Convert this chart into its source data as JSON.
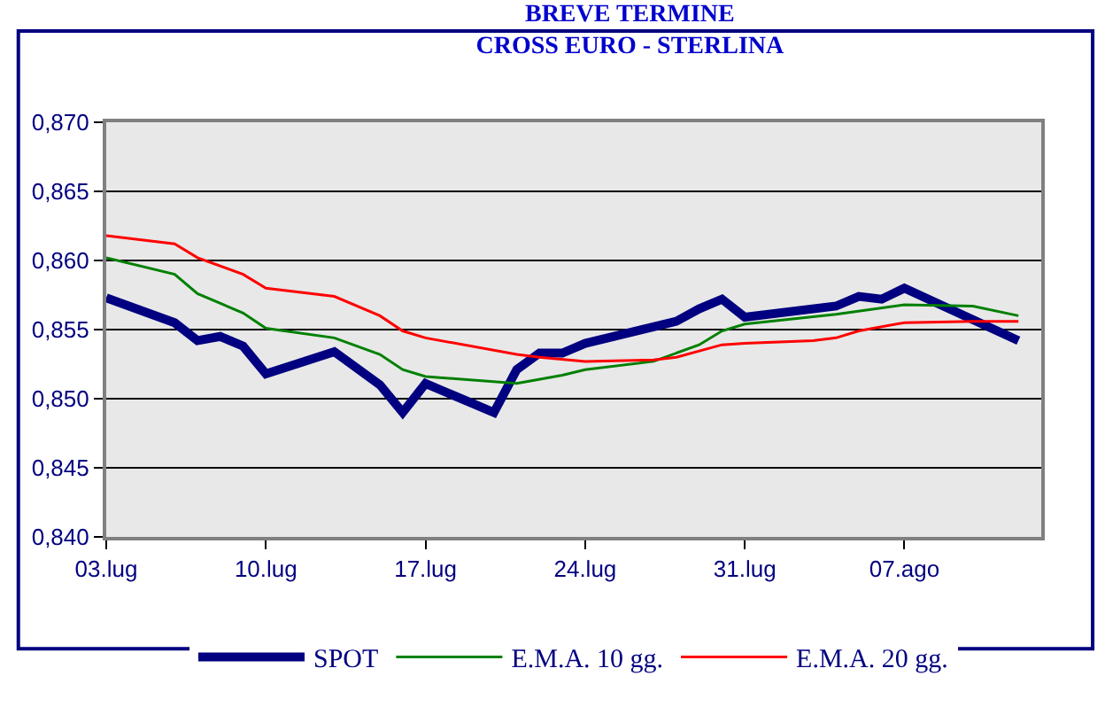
{
  "chart_data": {
    "type": "line",
    "title": "BREVE TERMINE",
    "subtitle": "CROSS EURO - STERLINA",
    "xlim": [
      "--07-03",
      "--08-13"
    ],
    "xticks": [
      {
        "value": "--07-03",
        "label": "03.lug"
      },
      {
        "value": "--07-10",
        "label": "10.lug"
      },
      {
        "value": "--07-17",
        "label": "17.lug"
      },
      {
        "value": "--07-24",
        "label": "24.lug"
      },
      {
        "value": "--07-31",
        "label": "31.lug"
      },
      {
        "value": "--08-07",
        "label": "07.ago"
      }
    ],
    "ylim": [
      0.84,
      0.87
    ],
    "yticks": [
      {
        "value": 0.84,
        "label": "0,840"
      },
      {
        "value": 0.845,
        "label": "0,845"
      },
      {
        "value": 0.85,
        "label": "0,850"
      },
      {
        "value": 0.855,
        "label": "0,855"
      },
      {
        "value": 0.86,
        "label": "0,860"
      },
      {
        "value": 0.865,
        "label": "0,865"
      },
      {
        "value": 0.87,
        "label": "0,870"
      }
    ],
    "grid": "y",
    "legend": "bottom",
    "marker": "none",
    "series": [
      {
        "name": "SPOT",
        "color": "#000080",
        "x": [
          "--07-03",
          "--07-06",
          "--07-07",
          "--07-08",
          "--07-09",
          "--07-10",
          "--07-13",
          "--07-15",
          "--07-16",
          "--07-17",
          "--07-20",
          "--07-21",
          "--07-22",
          "--07-23",
          "--07-24",
          "--07-28",
          "--07-29",
          "--07-30",
          "--07-31",
          "--08-04",
          "--08-05",
          "--08-06",
          "--08-07",
          "--08-12"
        ],
        "values": [
          0.8573,
          0.8555,
          0.8542,
          0.8545,
          0.8538,
          0.8518,
          0.8534,
          0.851,
          0.849,
          0.8511,
          0.849,
          0.8521,
          0.8533,
          0.8533,
          0.854,
          0.8556,
          0.8565,
          0.8572,
          0.8559,
          0.8567,
          0.8574,
          0.8572,
          0.858,
          0.8542
        ]
      },
      {
        "name": "E.M.A. 10 gg.",
        "color": "#008000",
        "x": [
          "--07-03",
          "--07-06",
          "--07-07",
          "--07-09",
          "--07-10",
          "--07-13",
          "--07-15",
          "--07-16",
          "--07-17",
          "--07-21",
          "--07-23",
          "--07-24",
          "--07-27",
          "--07-29",
          "--07-30",
          "--07-31",
          "--08-04",
          "--08-07",
          "--08-10",
          "--08-12"
        ],
        "values": [
          0.8602,
          0.859,
          0.8576,
          0.8562,
          0.8551,
          0.8544,
          0.8532,
          0.8521,
          0.8516,
          0.8511,
          0.8517,
          0.8521,
          0.8527,
          0.8539,
          0.8549,
          0.8554,
          0.8561,
          0.8568,
          0.8567,
          0.856
        ]
      },
      {
        "name": "E.M.A. 20 gg.",
        "color": "#ff0000",
        "x": [
          "--07-03",
          "--07-06",
          "--07-07",
          "--07-09",
          "--07-10",
          "--07-13",
          "--07-15",
          "--07-16",
          "--07-17",
          "--07-21",
          "--07-22",
          "--07-24",
          "--07-27",
          "--07-28",
          "--07-30",
          "--07-31",
          "--08-03",
          "--08-04",
          "--08-05",
          "--08-07",
          "--08-10",
          "--08-12"
        ],
        "values": [
          0.8618,
          0.8612,
          0.8602,
          0.859,
          0.858,
          0.8574,
          0.856,
          0.8549,
          0.8544,
          0.8532,
          0.853,
          0.8527,
          0.8528,
          0.853,
          0.8539,
          0.854,
          0.8542,
          0.8544,
          0.8549,
          0.8555,
          0.8556,
          0.8556
        ]
      }
    ]
  }
}
